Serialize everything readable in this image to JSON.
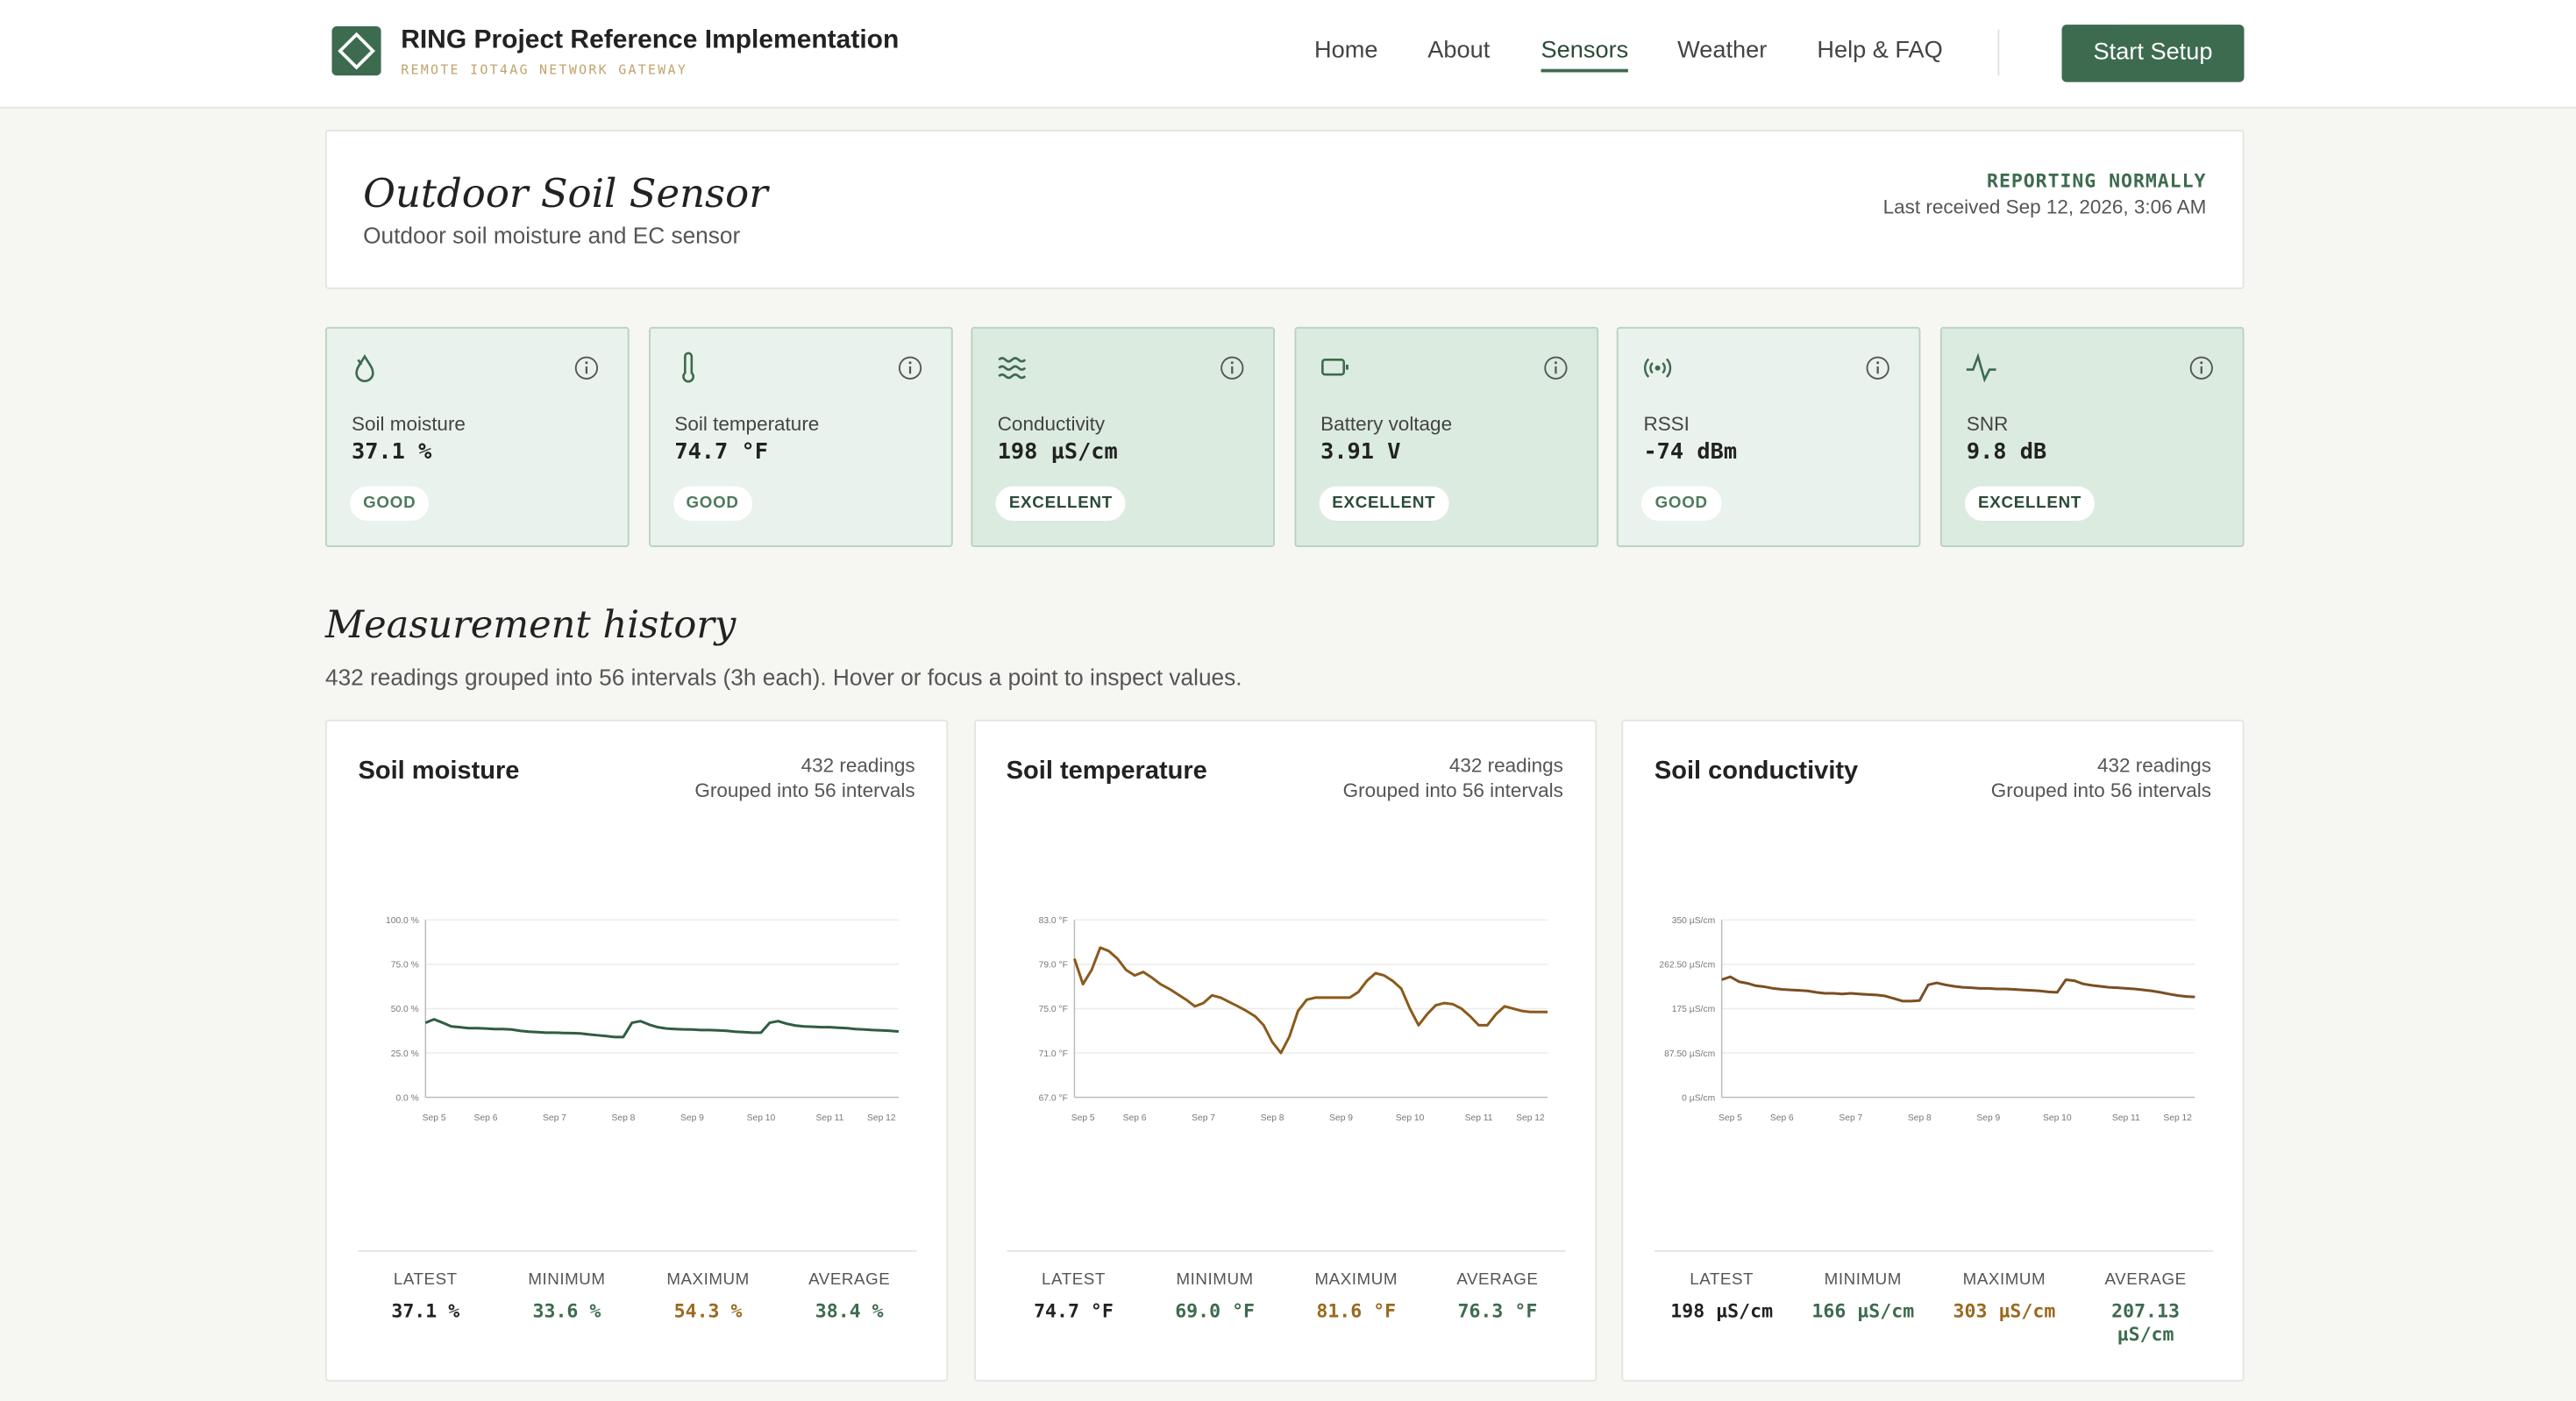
{
  "header": {
    "title": "RING Project Reference Implementation",
    "subtitle": "REMOTE IOT4AG NETWORK GATEWAY",
    "nav": [
      "Home",
      "About",
      "Sensors",
      "Weather",
      "Help & FAQ"
    ],
    "active": "Sensors",
    "button": "Start Setup"
  },
  "sensor": {
    "title": "Outdoor Soil Sensor",
    "subtitle": "Outdoor soil moisture and EC sensor",
    "status": "REPORTING NORMALLY",
    "last_received": "Last received Sep 12, 2026, 3:06 AM"
  },
  "metrics": [
    {
      "label": "Soil moisture",
      "value": "37.1 %",
      "badge": "GOOD",
      "icon": "drop"
    },
    {
      "label": "Soil temperature",
      "value": "74.7 °F",
      "badge": "GOOD",
      "icon": "therm"
    },
    {
      "label": "Conductivity",
      "value": "198 µS/cm",
      "badge": "EXCELLENT",
      "icon": "wave"
    },
    {
      "label": "Battery voltage",
      "value": "3.91 V",
      "badge": "EXCELLENT",
      "icon": "battery"
    },
    {
      "label": "RSSI",
      "value": "-74 dBm",
      "badge": "GOOD",
      "icon": "signal"
    },
    {
      "label": "SNR",
      "value": "9.8 dB",
      "badge": "EXCELLENT",
      "icon": "pulse"
    }
  ],
  "history": {
    "title": "Measurement history",
    "subtitle": "432 readings grouped into 56 intervals (3h each). Hover or focus a point to inspect values."
  },
  "chart_data": [
    {
      "type": "line",
      "title": "Soil moisture",
      "readings": "432 readings",
      "grouping": "Grouped into 56 intervals",
      "color": "#2f5d43",
      "categories": [
        null,
        "Sep 5",
        null,
        null,
        null,
        null,
        null,
        "Sep 6",
        null,
        null,
        null,
        null,
        null,
        null,
        null,
        "Sep 7",
        null,
        null,
        null,
        null,
        null,
        null,
        null,
        "Sep 8",
        null,
        null,
        null,
        null,
        null,
        null,
        null,
        "Sep 9",
        null,
        null,
        null,
        null,
        null,
        null,
        null,
        "Sep 10",
        null,
        null,
        null,
        null,
        null,
        null,
        null,
        "Sep 11",
        null,
        null,
        null,
        null,
        null,
        "Sep 12",
        null,
        null
      ],
      "values": [
        42,
        44,
        42,
        40,
        39.5,
        39,
        39,
        38.8,
        38.5,
        38.5,
        38.2,
        37.5,
        37,
        36.8,
        36.5,
        36.5,
        36.3,
        36.2,
        36,
        35.5,
        35,
        34.5,
        34,
        34,
        42,
        43,
        41,
        39.5,
        38.8,
        38.5,
        38.3,
        38.2,
        38,
        38,
        37.8,
        37.5,
        37,
        36.8,
        36.5,
        36.5,
        42,
        43,
        41.5,
        40.5,
        40,
        39.8,
        39.5,
        39.5,
        39.3,
        39,
        38.5,
        38.2,
        38,
        37.8,
        37.5,
        37.1
      ],
      "ylim": [
        0,
        100
      ],
      "yticks": [
        {
          "value": 0,
          "label": "0.0 %"
        },
        {
          "value": 25,
          "label": "25.0 %"
        },
        {
          "value": 50,
          "label": "50.0 %"
        },
        {
          "value": 75,
          "label": "75.0 %"
        },
        {
          "value": 100,
          "label": "100.0 %"
        }
      ],
      "grid": true,
      "stats": [
        {
          "label": "LATEST",
          "value": "37.1 %"
        },
        {
          "label": "MINIMUM",
          "value": "33.6 %"
        },
        {
          "label": "MAXIMUM",
          "value": "54.3 %"
        },
        {
          "label": "AVERAGE",
          "value": "38.4 %"
        }
      ]
    },
    {
      "type": "line",
      "title": "Soil temperature",
      "readings": "432 readings",
      "grouping": "Grouped into 56 intervals",
      "color": "#8a5a1c",
      "categories": [
        null,
        "Sep 5",
        null,
        null,
        null,
        null,
        null,
        "Sep 6",
        null,
        null,
        null,
        null,
        null,
        null,
        null,
        "Sep 7",
        null,
        null,
        null,
        null,
        null,
        null,
        null,
        "Sep 8",
        null,
        null,
        null,
        null,
        null,
        null,
        null,
        "Sep 9",
        null,
        null,
        null,
        null,
        null,
        null,
        null,
        "Sep 10",
        null,
        null,
        null,
        null,
        null,
        null,
        null,
        "Sep 11",
        null,
        null,
        null,
        null,
        null,
        "Sep 12",
        null,
        null
      ],
      "values": [
        79.5,
        77.2,
        78.5,
        80.5,
        80.2,
        79.5,
        78.5,
        78,
        78.3,
        77.8,
        77.2,
        76.8,
        76.3,
        75.8,
        75.2,
        75.5,
        76.2,
        76,
        75.6,
        75.2,
        74.8,
        74.3,
        73.5,
        72,
        71,
        72.5,
        74.8,
        75.8,
        76,
        76,
        76,
        76,
        76,
        76.5,
        77.5,
        78.2,
        78,
        77.5,
        76.8,
        75,
        73.5,
        74.5,
        75.3,
        75.5,
        75.4,
        75,
        74.3,
        73.5,
        73.5,
        74.5,
        75.2,
        75,
        74.8,
        74.7,
        74.7,
        74.7
      ],
      "ylim": [
        67,
        83
      ],
      "yticks": [
        {
          "value": 67,
          "label": "67.0 °F"
        },
        {
          "value": 71,
          "label": "71.0 °F"
        },
        {
          "value": 75,
          "label": "75.0 °F"
        },
        {
          "value": 79,
          "label": "79.0 °F"
        },
        {
          "value": 83,
          "label": "83.0 °F"
        }
      ],
      "grid": true,
      "stats": [
        {
          "label": "LATEST",
          "value": "74.7 °F"
        },
        {
          "label": "MINIMUM",
          "value": "69.0 °F"
        },
        {
          "label": "MAXIMUM",
          "value": "81.6 °F"
        },
        {
          "label": "AVERAGE",
          "value": "76.3 °F"
        }
      ]
    },
    {
      "type": "line",
      "title": "Soil conductivity",
      "readings": "432 readings",
      "grouping": "Grouped into 56 intervals",
      "color": "#7a4f22",
      "categories": [
        null,
        "Sep 5",
        null,
        null,
        null,
        null,
        null,
        "Sep 6",
        null,
        null,
        null,
        null,
        null,
        null,
        null,
        "Sep 7",
        null,
        null,
        null,
        null,
        null,
        null,
        null,
        "Sep 8",
        null,
        null,
        null,
        null,
        null,
        null,
        null,
        "Sep 9",
        null,
        null,
        null,
        null,
        null,
        null,
        null,
        "Sep 10",
        null,
        null,
        null,
        null,
        null,
        null,
        null,
        "Sep 11",
        null,
        null,
        null,
        null,
        null,
        "Sep 12",
        null,
        null
      ],
      "values": [
        232,
        238,
        228,
        225,
        220,
        218,
        215,
        213,
        212,
        211,
        210,
        207,
        205,
        205,
        204,
        205,
        204,
        203,
        202,
        200,
        195,
        190,
        190,
        191,
        222,
        226,
        222,
        219,
        217,
        216,
        215,
        215,
        214,
        214,
        213,
        212,
        211,
        210,
        208,
        207,
        232,
        230,
        224,
        221,
        219,
        217,
        216,
        215,
        214,
        212,
        210,
        207,
        204,
        201,
        199,
        198
      ],
      "ylim": [
        0,
        350
      ],
      "yticks": [
        {
          "value": 0,
          "label": "0 µS/cm"
        },
        {
          "value": 87.5,
          "label": "87.50 µS/cm"
        },
        {
          "value": 175,
          "label": "175 µS/cm"
        },
        {
          "value": 262.5,
          "label": "262.50 µS/cm"
        },
        {
          "value": 350,
          "label": "350 µS/cm"
        }
      ],
      "grid": true,
      "stats": [
        {
          "label": "LATEST",
          "value": "198 µS/cm"
        },
        {
          "label": "MINIMUM",
          "value": "166 µS/cm"
        },
        {
          "label": "MAXIMUM",
          "value": "303 µS/cm"
        },
        {
          "label": "AVERAGE",
          "value": "207.13 µS/cm"
        }
      ]
    }
  ]
}
